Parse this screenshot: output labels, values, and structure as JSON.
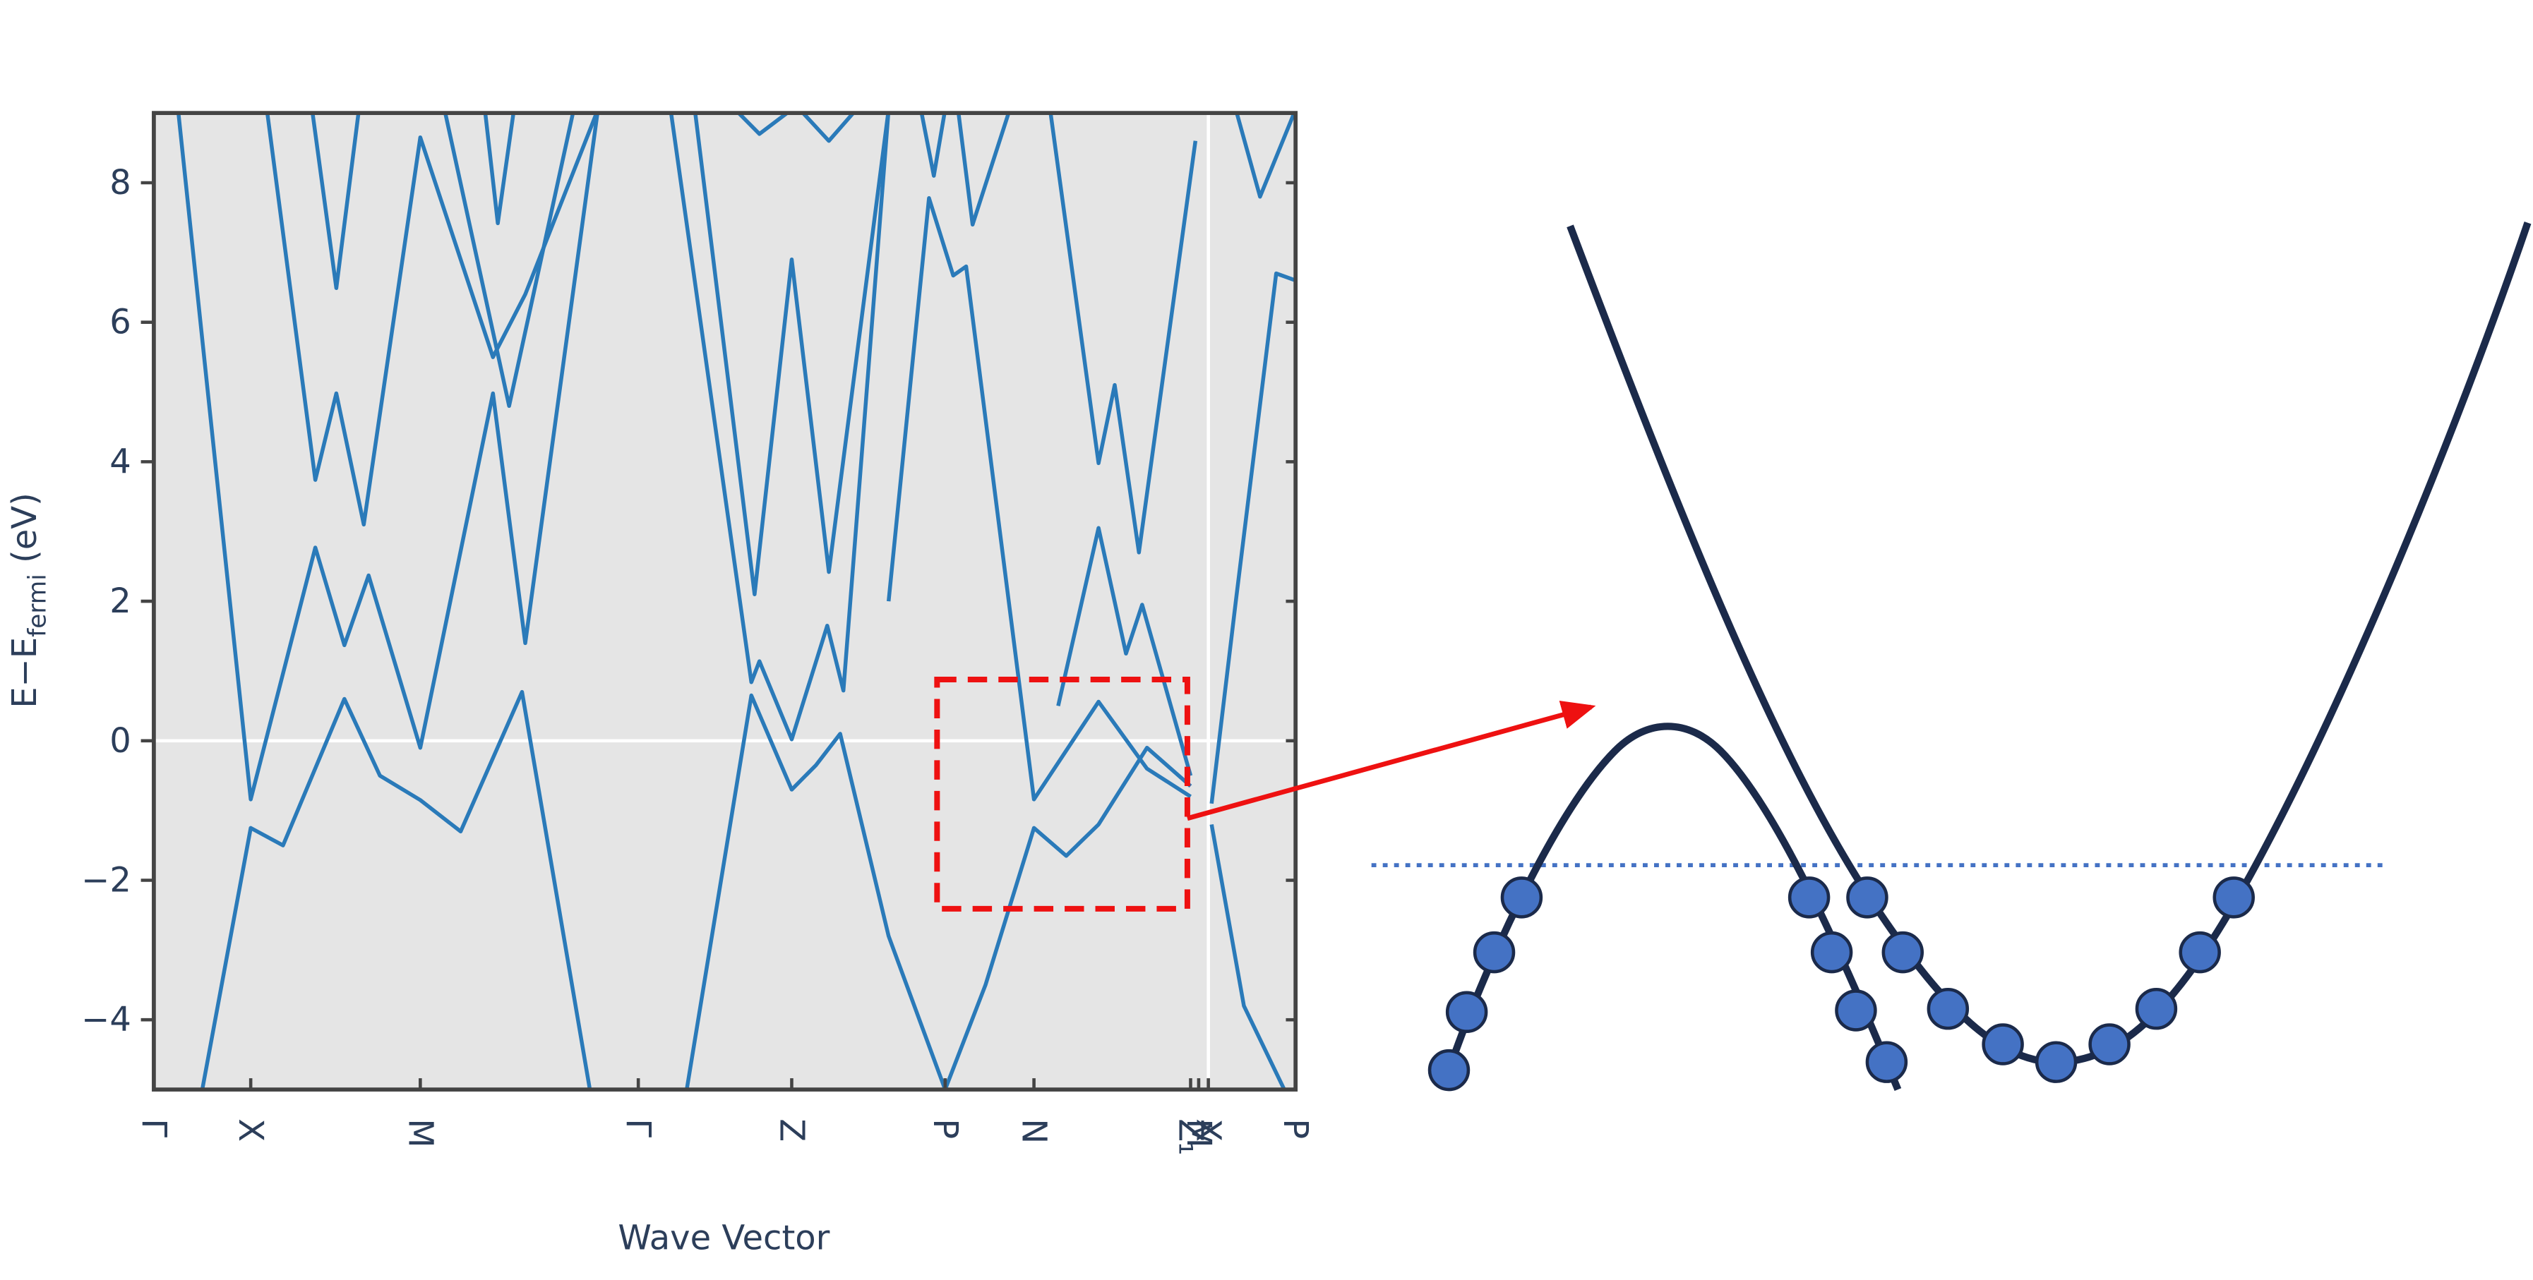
{
  "chart_data": {
    "type": "line",
    "xlabel": "Wave Vector",
    "ylabel": {
      "text": "E−E",
      "sub": "fermi",
      "unit": "(eV)"
    },
    "color": "#2a7ab9",
    "background": "#e5e5e5",
    "grid": false,
    "hline": 0,
    "vline": 6.53,
    "xlim": [
      0,
      7.07
    ],
    "ylim": [
      -5,
      9
    ],
    "yticks": [
      {
        "value": -4,
        "label": "−4"
      },
      {
        "value": -2,
        "label": "−2"
      },
      0,
      2,
      4,
      6,
      8
    ],
    "xticks": [
      {
        "value": 0,
        "label": "Γ"
      },
      {
        "value": 0.6,
        "label": "X"
      },
      {
        "value": 1.65,
        "label": "M"
      },
      {
        "value": 3.0,
        "label": "Γ"
      },
      {
        "value": 3.95,
        "label": "Z"
      },
      {
        "value": 4.9,
        "label": "P"
      },
      {
        "value": 5.45,
        "label": "N"
      },
      {
        "value": 6.42,
        "label": "Z₁"
      },
      {
        "value": 6.47,
        "label": "M"
      },
      {
        "value": 6.53,
        "label": "X"
      },
      {
        "value": 7.07,
        "label": "P"
      }
    ],
    "series": [
      {
        "x": [
          0.15,
          0.6,
          1.0,
          1.18,
          1.33,
          1.65,
          2.1,
          2.3,
          2.75
        ],
        "values": [
          9.05,
          -0.84,
          2.77,
          1.37,
          2.37,
          -0.1,
          4.98,
          1.4,
          9.05
        ]
      },
      {
        "x": [
          0.3,
          0.6,
          0.8,
          1.18,
          1.4,
          1.65,
          1.9,
          2.28,
          2.7
        ],
        "values": [
          -5,
          -1.25,
          -1.5,
          0.6,
          -0.5,
          -0.85,
          -1.3,
          0.7,
          -5
        ]
      },
      {
        "x": [
          0.7,
          1.0,
          1.13,
          1.3,
          1.65,
          2.1,
          2.3,
          2.75
        ],
        "values": [
          9.05,
          3.74,
          4.98,
          3.1,
          8.65,
          5.5,
          6.4,
          9.05
        ]
      },
      {
        "x": [
          0.98,
          1.13,
          1.27
        ],
        "values": [
          9.05,
          6.49,
          9.05
        ]
      },
      {
        "x": [
          1.8,
          2.2,
          2.6
        ],
        "values": [
          9.05,
          4.8,
          9.05
        ]
      },
      {
        "x": [
          2.05,
          2.13,
          2.23
        ],
        "values": [
          9.05,
          7.42,
          9.05
        ]
      },
      {
        "x": [
          3.3,
          3.7,
          3.95,
          4.1,
          4.25,
          4.55,
          4.9,
          5.15,
          5.45,
          5.65,
          5.85,
          6.15,
          6.42
        ],
        "values": [
          -5,
          0.65,
          -0.7,
          -0.35,
          0.1,
          -2.8,
          -5,
          -3.5,
          -1.25,
          -1.65,
          -1.2,
          -0.1,
          -0.65
        ]
      },
      {
        "x": [
          3.2,
          3.7,
          3.75,
          3.95,
          4.17,
          4.27,
          4.55
        ],
        "values": [
          9.05,
          0.84,
          1.14,
          0.02,
          1.65,
          0.72,
          9.05
        ]
      },
      {
        "x": [
          3.35,
          3.72,
          3.95,
          4.18,
          4.55
        ],
        "values": [
          9.05,
          2.1,
          6.9,
          2.42,
          9.05
        ]
      },
      {
        "x": [
          3.6,
          3.75,
          3.95
        ],
        "values": [
          9.05,
          8.7,
          9.05
        ]
      },
      {
        "x": [
          4.0,
          4.18,
          4.35
        ],
        "values": [
          9.05,
          8.6,
          9.05
        ]
      },
      {
        "x": [
          4.55,
          4.8,
          4.95,
          5.03,
          5.45,
          5.85,
          6.15,
          6.42
        ],
        "values": [
          2,
          7.78,
          6.67,
          6.8,
          -0.84,
          0.56,
          -0.4,
          -0.8
        ]
      },
      {
        "x": [
          4.75,
          4.83,
          4.9
        ],
        "values": [
          9.05,
          8.1,
          9.05
        ]
      },
      {
        "x": [
          4.98,
          5.07,
          5.3
        ],
        "values": [
          9.05,
          7.4,
          9.05
        ]
      },
      {
        "x": [
          5.55,
          5.85,
          5.95,
          6.1,
          6.45
        ],
        "values": [
          9.05,
          3.98,
          5.1,
          2.7,
          8.6
        ]
      },
      {
        "x": [
          5.6,
          5.85,
          6.02,
          6.12,
          6.42
        ],
        "values": [
          0.5,
          3.05,
          1.25,
          1.95,
          -0.5
        ]
      },
      {
        "x": [
          6.55,
          6.75,
          7.0
        ],
        "values": [
          -1.2,
          -3.8,
          -5
        ]
      },
      {
        "x": [
          6.55,
          6.7,
          6.95,
          7.07
        ],
        "values": [
          -0.9,
          2,
          6.7,
          6.6
        ]
      },
      {
        "x": [
          6.7,
          6.85,
          7.07
        ],
        "values": [
          9.05,
          7.8,
          9.05
        ]
      }
    ]
  }
}
